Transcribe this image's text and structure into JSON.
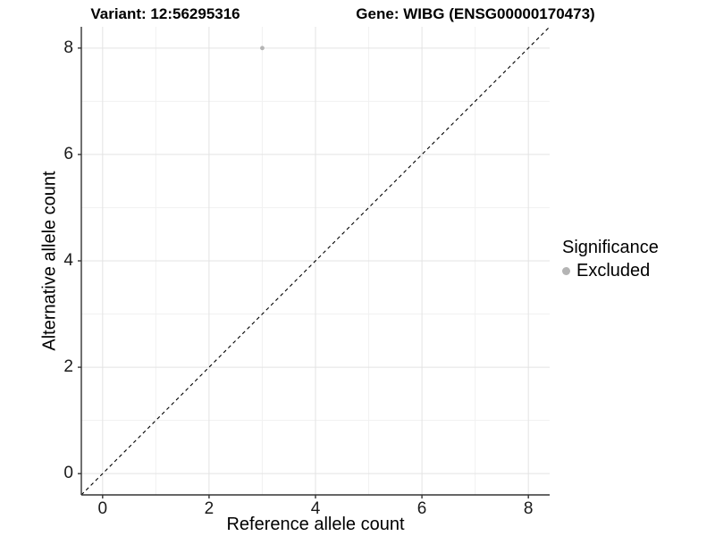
{
  "titles": {
    "variant": "Variant: 12:56295316",
    "gene": "Gene: WIBG (ENSG00000170473)"
  },
  "chart_data": {
    "type": "scatter",
    "title_left": "Variant: 12:56295316",
    "title_right": "Gene: WIBG (ENSG00000170473)",
    "xlabel": "Reference allele count",
    "ylabel": "Alternative allele count",
    "xlim": [
      -0.4,
      8.4
    ],
    "ylim": [
      -0.4,
      8.4
    ],
    "xticks": [
      0,
      2,
      4,
      6,
      8
    ],
    "yticks": [
      0,
      2,
      4,
      6,
      8
    ],
    "minor_xticks": [
      1,
      3,
      5,
      7
    ],
    "minor_yticks": [
      1,
      3,
      5,
      7
    ],
    "grid": true,
    "points": [
      {
        "x": 3,
        "y": 8,
        "series": "Excluded"
      }
    ],
    "reference_line": {
      "slope": 1,
      "intercept": 0,
      "style": "dashed",
      "color": "#000000"
    },
    "legend": {
      "title": "Significance",
      "position": "right",
      "items": [
        {
          "label": "Excluded",
          "color": "#b4b4b4"
        }
      ]
    },
    "colors": {
      "background": "#ffffff",
      "grid_major": "#e3e3e3",
      "grid_minor": "#f1f1f1",
      "axis_line": "#333333",
      "tick_mark": "#333333",
      "point": "#b4b4b4"
    }
  }
}
